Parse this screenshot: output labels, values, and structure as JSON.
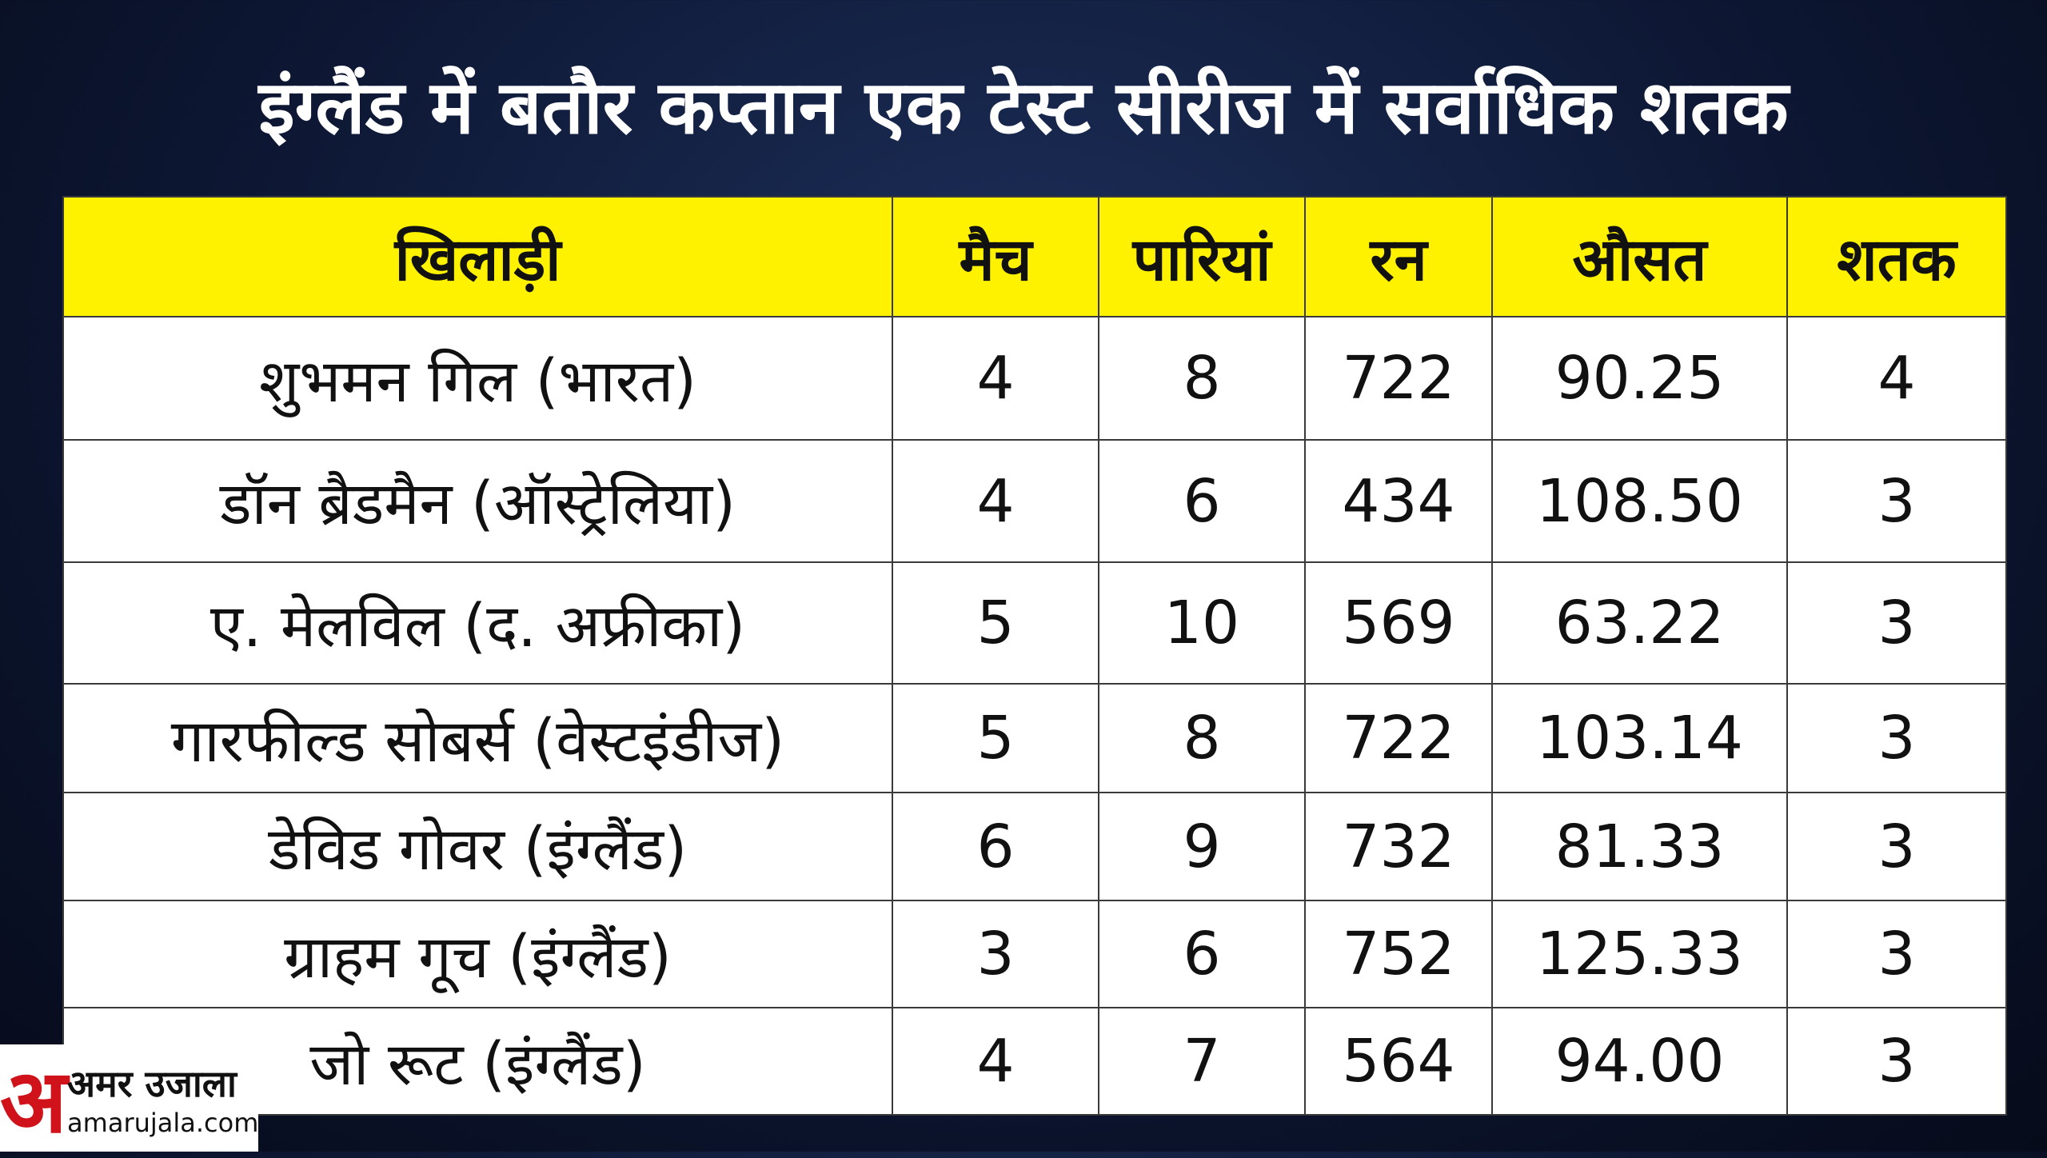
{
  "title": "इंग्लैंड में बतौर कप्तान एक टेस्ट सीरीज में सर्वाधिक शतक",
  "table": {
    "header": [
      "खिलाड़ी",
      "मैच",
      "पारियां",
      "रन",
      "औसत",
      "शतक"
    ],
    "rows": [
      [
        "शुभमन गिल (भारत)",
        "4",
        "8",
        "722",
        "90.25",
        "4"
      ],
      [
        "डॉन ब्रैडमैन (ऑस्ट्रेलिया)",
        "4",
        "6",
        "434",
        "108.50",
        "3"
      ],
      [
        "ए. मेलविल (द. अफ्रीका)",
        "5",
        "10",
        "569",
        "63.22",
        "3"
      ],
      [
        "गारफील्ड सोबर्स (वेस्टइंडीज)",
        "5",
        "8",
        "722",
        "103.14",
        "3"
      ],
      [
        "डेविड गोवर (इंग्लैंड)",
        "6",
        "9",
        "732",
        "81.33",
        "3"
      ],
      [
        "ग्राहम गूच (इंग्लैंड)",
        "3",
        "6",
        "752",
        "125.33",
        "3"
      ],
      [
        "जो रूट (इंग्लैंड)",
        "4",
        "7",
        "564",
        "94.00",
        "3"
      ]
    ]
  },
  "logo": {
    "mark": "अ",
    "name": "अमर उजाला",
    "url": "amarujala.com"
  }
}
